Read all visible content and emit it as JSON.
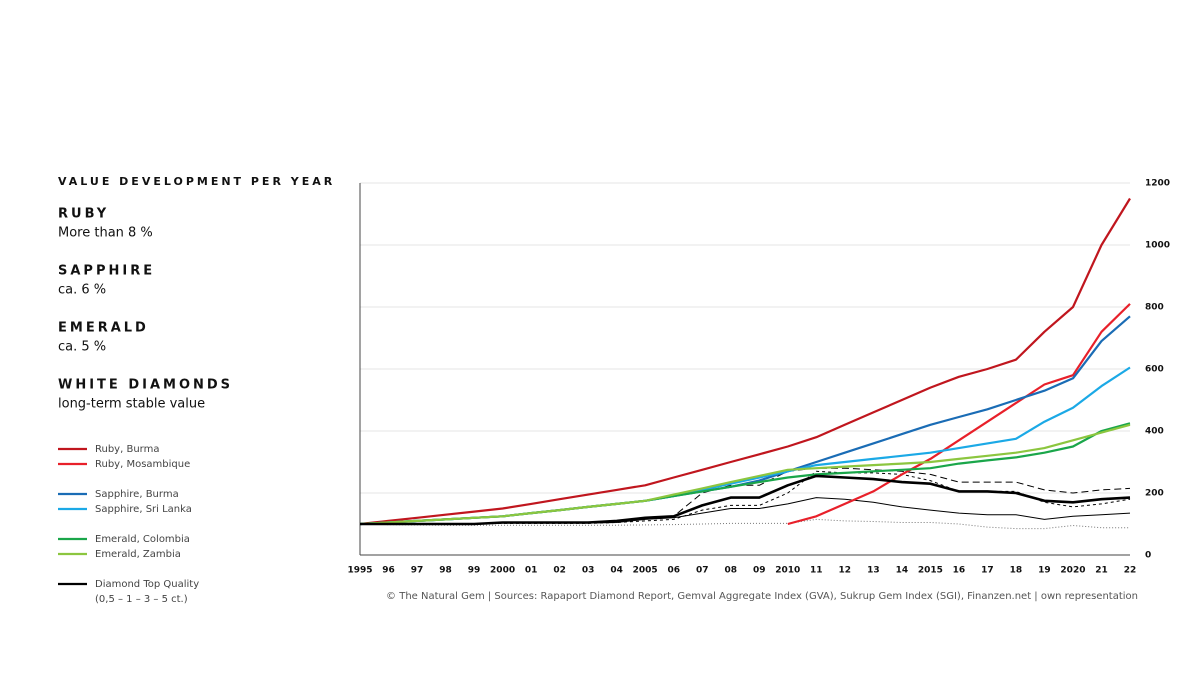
{
  "panel": {
    "title": "VALUE DEVELOPMENT PER YEAR",
    "items": [
      {
        "heading": "RUBY",
        "text": "More than 8 %"
      },
      {
        "heading": "SAPPHIRE",
        "text": "ca. 6 %"
      },
      {
        "heading": "EMERALD",
        "text": "ca. 5 %"
      },
      {
        "heading": "WHITE DIAMONDS",
        "text": "long-term stable value"
      }
    ]
  },
  "chart_data": {
    "type": "line",
    "categories": [
      "1995",
      "96",
      "97",
      "98",
      "99",
      "2000",
      "01",
      "02",
      "03",
      "04",
      "2005",
      "06",
      "07",
      "08",
      "09",
      "2010",
      "11",
      "12",
      "13",
      "14",
      "2015",
      "16",
      "17",
      "18",
      "19",
      "2020",
      "21",
      "22"
    ],
    "ylim": [
      0,
      1200
    ],
    "yticks": [
      0,
      200,
      400,
      600,
      800,
      1000,
      1200
    ],
    "grid": true,
    "source": "© The Natural Gem | Sources: Rapaport Diamond Report, Gemval Aggregate Index (GVA), Sukrup Gem Index (SGI), Finanzen.net | own representation",
    "legend_note": "(0,5 – 1 – 3 – 5 ct.)",
    "series": [
      {
        "name": "Ruby, Burma",
        "color": "#c0161e",
        "values": [
          100,
          110,
          120,
          130,
          140,
          150,
          165,
          180,
          195,
          210,
          225,
          250,
          275,
          300,
          325,
          350,
          380,
          420,
          460,
          500,
          540,
          575,
          600,
          630,
          720,
          800,
          1000,
          1150
        ]
      },
      {
        "name": "Ruby, Mosambique",
        "color": "#e8202a",
        "values": [
          null,
          null,
          null,
          null,
          null,
          null,
          null,
          null,
          null,
          null,
          null,
          null,
          null,
          null,
          null,
          100,
          125,
          165,
          205,
          260,
          310,
          370,
          430,
          490,
          550,
          580,
          720,
          810
        ]
      },
      {
        "name": "Sapphire, Burma",
        "color": "#1a6cb5",
        "values": [
          100,
          105,
          110,
          115,
          120,
          125,
          135,
          145,
          155,
          165,
          175,
          190,
          205,
          220,
          240,
          270,
          300,
          330,
          360,
          390,
          420,
          445,
          470,
          500,
          530,
          570,
          690,
          770
        ]
      },
      {
        "name": "Sapphire, Sri Lanka",
        "color": "#1ba9e6",
        "values": [
          100,
          105,
          110,
          115,
          120,
          125,
          135,
          145,
          155,
          165,
          175,
          190,
          210,
          230,
          250,
          270,
          290,
          300,
          310,
          320,
          330,
          345,
          360,
          375,
          430,
          475,
          545,
          605
        ]
      },
      {
        "name": "Emerald, Colombia",
        "color": "#1aa64a",
        "values": [
          100,
          105,
          110,
          115,
          120,
          125,
          135,
          145,
          155,
          165,
          175,
          190,
          205,
          220,
          235,
          250,
          260,
          265,
          270,
          275,
          280,
          295,
          305,
          315,
          330,
          350,
          400,
          425
        ]
      },
      {
        "name": "Emerald, Zambia",
        "color": "#8cc63f",
        "values": [
          100,
          105,
          110,
          115,
          120,
          125,
          135,
          145,
          155,
          165,
          175,
          195,
          215,
          235,
          255,
          275,
          280,
          285,
          290,
          295,
          300,
          310,
          320,
          330,
          345,
          370,
          395,
          420
        ]
      },
      {
        "name": "Diamond Top Quality",
        "color": "#000000",
        "emphasis": true,
        "values": [
          100,
          100,
          100,
          100,
          100,
          105,
          105,
          105,
          105,
          110,
          120,
          125,
          160,
          185,
          185,
          225,
          255,
          250,
          245,
          235,
          230,
          205,
          205,
          200,
          175,
          170,
          180,
          185
        ]
      },
      {
        "color": "#000000",
        "style": "dashed",
        "values": [
          100,
          100,
          100,
          100,
          100,
          105,
          105,
          105,
          105,
          110,
          120,
          125,
          200,
          225,
          225,
          270,
          280,
          280,
          275,
          270,
          260,
          235,
          235,
          235,
          210,
          200,
          210,
          215
        ]
      },
      {
        "color": "#000000",
        "style": "short-dashed",
        "values": [
          100,
          100,
          100,
          100,
          100,
          102,
          102,
          102,
          102,
          105,
          110,
          115,
          145,
          160,
          160,
          200,
          270,
          265,
          265,
          260,
          240,
          205,
          205,
          205,
          170,
          155,
          165,
          180
        ]
      },
      {
        "color": "#000000",
        "values": [
          100,
          100,
          100,
          100,
          100,
          103,
          103,
          103,
          103,
          105,
          115,
          120,
          135,
          150,
          150,
          165,
          185,
          180,
          170,
          155,
          145,
          135,
          130,
          130,
          115,
          125,
          130,
          135
        ]
      },
      {
        "color": "#777777",
        "style": "dotted",
        "values": [
          100,
          98,
          97,
          96,
          96,
          96,
          96,
          96,
          96,
          96,
          97,
          98,
          100,
          102,
          102,
          102,
          115,
          110,
          108,
          105,
          105,
          100,
          90,
          85,
          85,
          95,
          88,
          88
        ]
      }
    ]
  }
}
